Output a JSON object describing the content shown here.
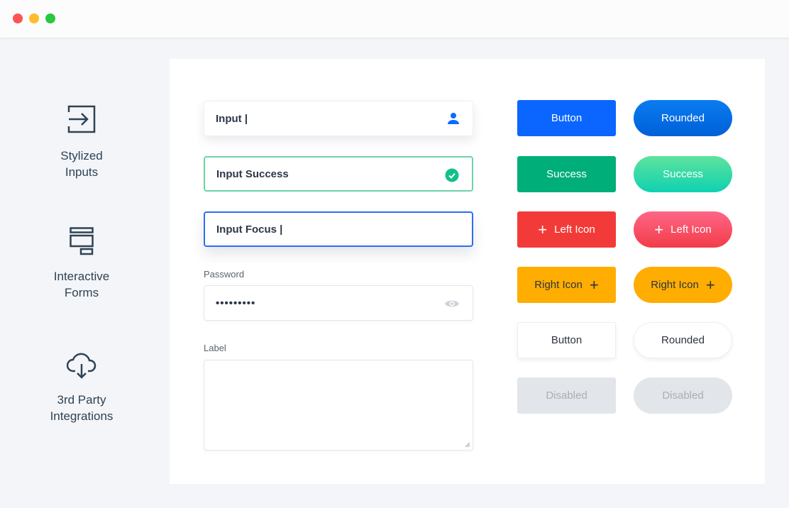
{
  "window": {
    "controls": [
      "close",
      "minimize",
      "maximize"
    ]
  },
  "sidebar": {
    "items": [
      {
        "label_1": "Stylized",
        "label_2": "Inputs",
        "icon": "sign-in-icon"
      },
      {
        "label_1": "Interactive",
        "label_2": "Forms",
        "icon": "form-layout-icon"
      },
      {
        "label_1": "3rd Party",
        "label_2": "Integrations",
        "icon": "cloud-download-icon"
      }
    ]
  },
  "inputs": {
    "basic": "Input |",
    "success": "Input Success",
    "focus": "Input Focus |",
    "password_label": "Password",
    "password_value": "•••••••••",
    "textarea_label": "Label"
  },
  "buttons": {
    "button": "Button",
    "rounded": "Rounded",
    "success": "Success",
    "left_icon": "Left Icon",
    "right_icon": "Right Icon",
    "disabled": "Disabled"
  },
  "colors": {
    "primary": "#0066ff",
    "success": "#00b07a",
    "danger": "#f23c3c",
    "warning": "#ffad00",
    "disabled": "#e2e5ea"
  }
}
